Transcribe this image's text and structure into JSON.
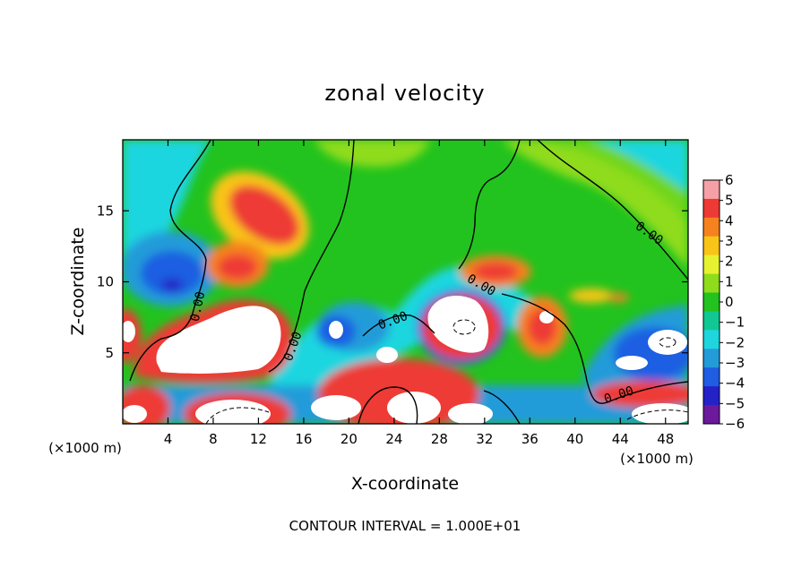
{
  "chart_data": {
    "type": "heatmap",
    "title": "zonal velocity",
    "xlabel": "X-coordinate",
    "ylabel": "Z-coordinate",
    "x_unit": "(×1000 m)",
    "x_unit_right": "(×1000 m)",
    "xlim": [
      0,
      50
    ],
    "ylim": [
      0,
      20
    ],
    "x_ticks": [
      4,
      8,
      12,
      16,
      20,
      24,
      28,
      32,
      36,
      40,
      44,
      48
    ],
    "y_ticks": [
      5,
      10,
      15
    ],
    "colorbar": {
      "levels": [
        6,
        5,
        4,
        3,
        2,
        1,
        0,
        -1,
        -2,
        -3,
        -4,
        -5,
        -6
      ],
      "colors": [
        "#f4a0a6",
        "#ee3a35",
        "#f6821f",
        "#f9c418",
        "#e6f230",
        "#8fdc1c",
        "#22c31e",
        "#12c892",
        "#1fd6df",
        "#249bd9",
        "#1f5ee2",
        "#2421c6",
        "#6a1a9a"
      ]
    },
    "contour_labels": [
      "0.00",
      "0.00",
      "0.00",
      "0.00",
      "0.00",
      "0.00"
    ],
    "contour_interval_text": "CONTOUR INTERVAL = 1.000E+01",
    "grid": false,
    "legend": "colorbar-right"
  }
}
